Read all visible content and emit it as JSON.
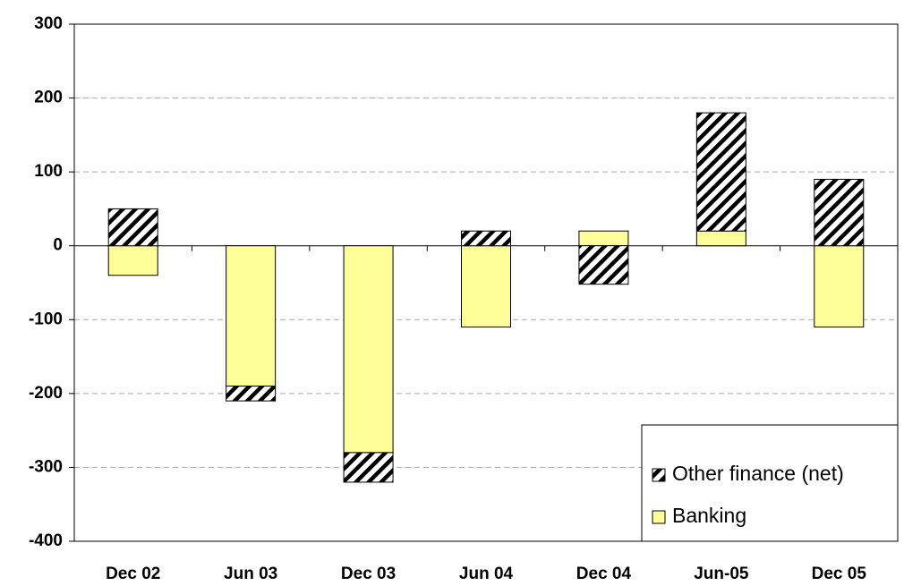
{
  "chart_data": {
    "type": "stacked_bar",
    "categories": [
      "Dec 02",
      "Jun 03",
      "Dec 03",
      "Jun 04",
      "Dec 04",
      "Jun-05",
      "Dec 05"
    ],
    "series": [
      {
        "name": "Banking",
        "color": "#ffff99",
        "values": [
          -40,
          -190,
          -280,
          -110,
          20,
          20,
          -110
        ]
      },
      {
        "name": "Other finance (net)",
        "color": "#000000",
        "pattern": "hatch",
        "values": [
          50,
          -20,
          -40,
          20,
          -52,
          160,
          90
        ]
      }
    ],
    "ylim": [
      -400,
      300
    ],
    "yticks": [
      -400,
      -300,
      -200,
      -100,
      0,
      100,
      200,
      300
    ],
    "grid": true,
    "legend": "lower right"
  }
}
